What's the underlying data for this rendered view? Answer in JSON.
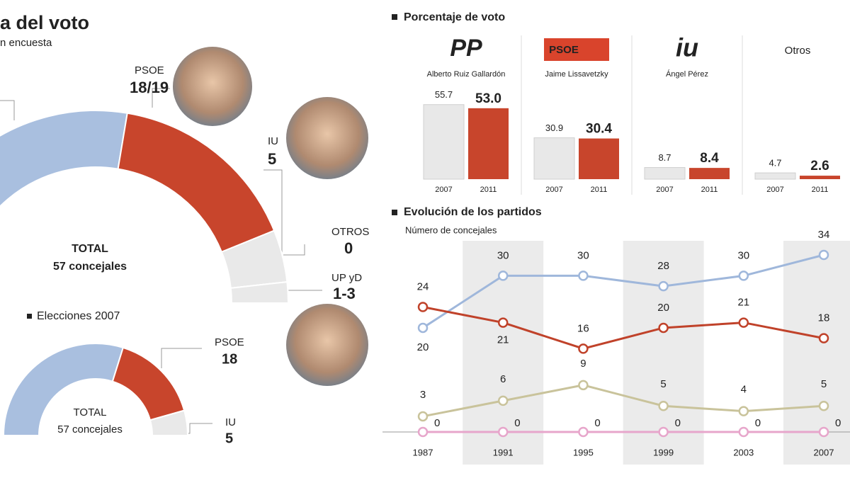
{
  "chart_data": [
    {
      "type": "semicircle",
      "title": "a del voto",
      "subtitle": "n encuesta",
      "total_label": "TOTAL",
      "total_text": "57 concejales",
      "categories": [
        null,
        "PSOE",
        "IU",
        "OTROS",
        "UP yD"
      ],
      "values": [
        31.5,
        18.5,
        5,
        0,
        2
      ],
      "value_labels": [
        null,
        "18/19",
        "5",
        "0",
        "1-3"
      ],
      "colors": [
        "#a9bfdf",
        "#c8452c",
        "#e9e9e9",
        "#e9e9e9",
        "#e9e9e9"
      ]
    },
    {
      "type": "semicircle",
      "title": "Elecciones 2007",
      "total_label": "TOTAL",
      "total_text": "57 concejales",
      "categories": [
        null,
        "PSOE",
        "IU"
      ],
      "values": [
        34,
        18,
        5
      ],
      "colors": [
        "#a9bfdf",
        "#c8452c",
        "#e9e9e9"
      ]
    },
    {
      "type": "bar",
      "title": "Porcentaje de voto",
      "categories": [
        {
          "logo": "PP",
          "candidate": "Alberto Ruiz Gallardón"
        },
        {
          "logo": "PSOE",
          "candidate": "Jaime Lissavetzky"
        },
        {
          "logo": "iu",
          "candidate": "Ángel Pérez"
        },
        {
          "logo": "Otros"
        }
      ],
      "series": [
        {
          "name": "2007",
          "color": "#e8e8e8",
          "values": [
            55.7,
            30.9,
            8.7,
            4.7
          ]
        },
        {
          "name": "2011",
          "color": "#c8452c",
          "values": [
            53.0,
            30.4,
            8.4,
            2.6
          ],
          "value_labels": [
            "53.0",
            "30.4",
            "8.4",
            "2.6"
          ]
        }
      ]
    },
    {
      "type": "line",
      "title": "Evolución de los partidos",
      "subtitle": "Número de concejales",
      "categories": [
        "1987",
        "1991",
        "1995",
        "1999",
        "2003",
        "2007"
      ],
      "ylim": [
        0,
        34
      ],
      "series": [
        {
          "color": "#9fb7db",
          "values": [
            20,
            30,
            30,
            28,
            30,
            34
          ]
        },
        {
          "color": "#c0422a",
          "values": [
            24,
            21,
            16,
            20,
            21,
            18
          ]
        },
        {
          "color": "#c9c39b",
          "values": [
            3,
            6,
            9,
            5,
            4,
            5
          ]
        },
        {
          "color": "#e7a6cb",
          "values": [
            0,
            0,
            0,
            0,
            0,
            0
          ]
        }
      ]
    }
  ]
}
